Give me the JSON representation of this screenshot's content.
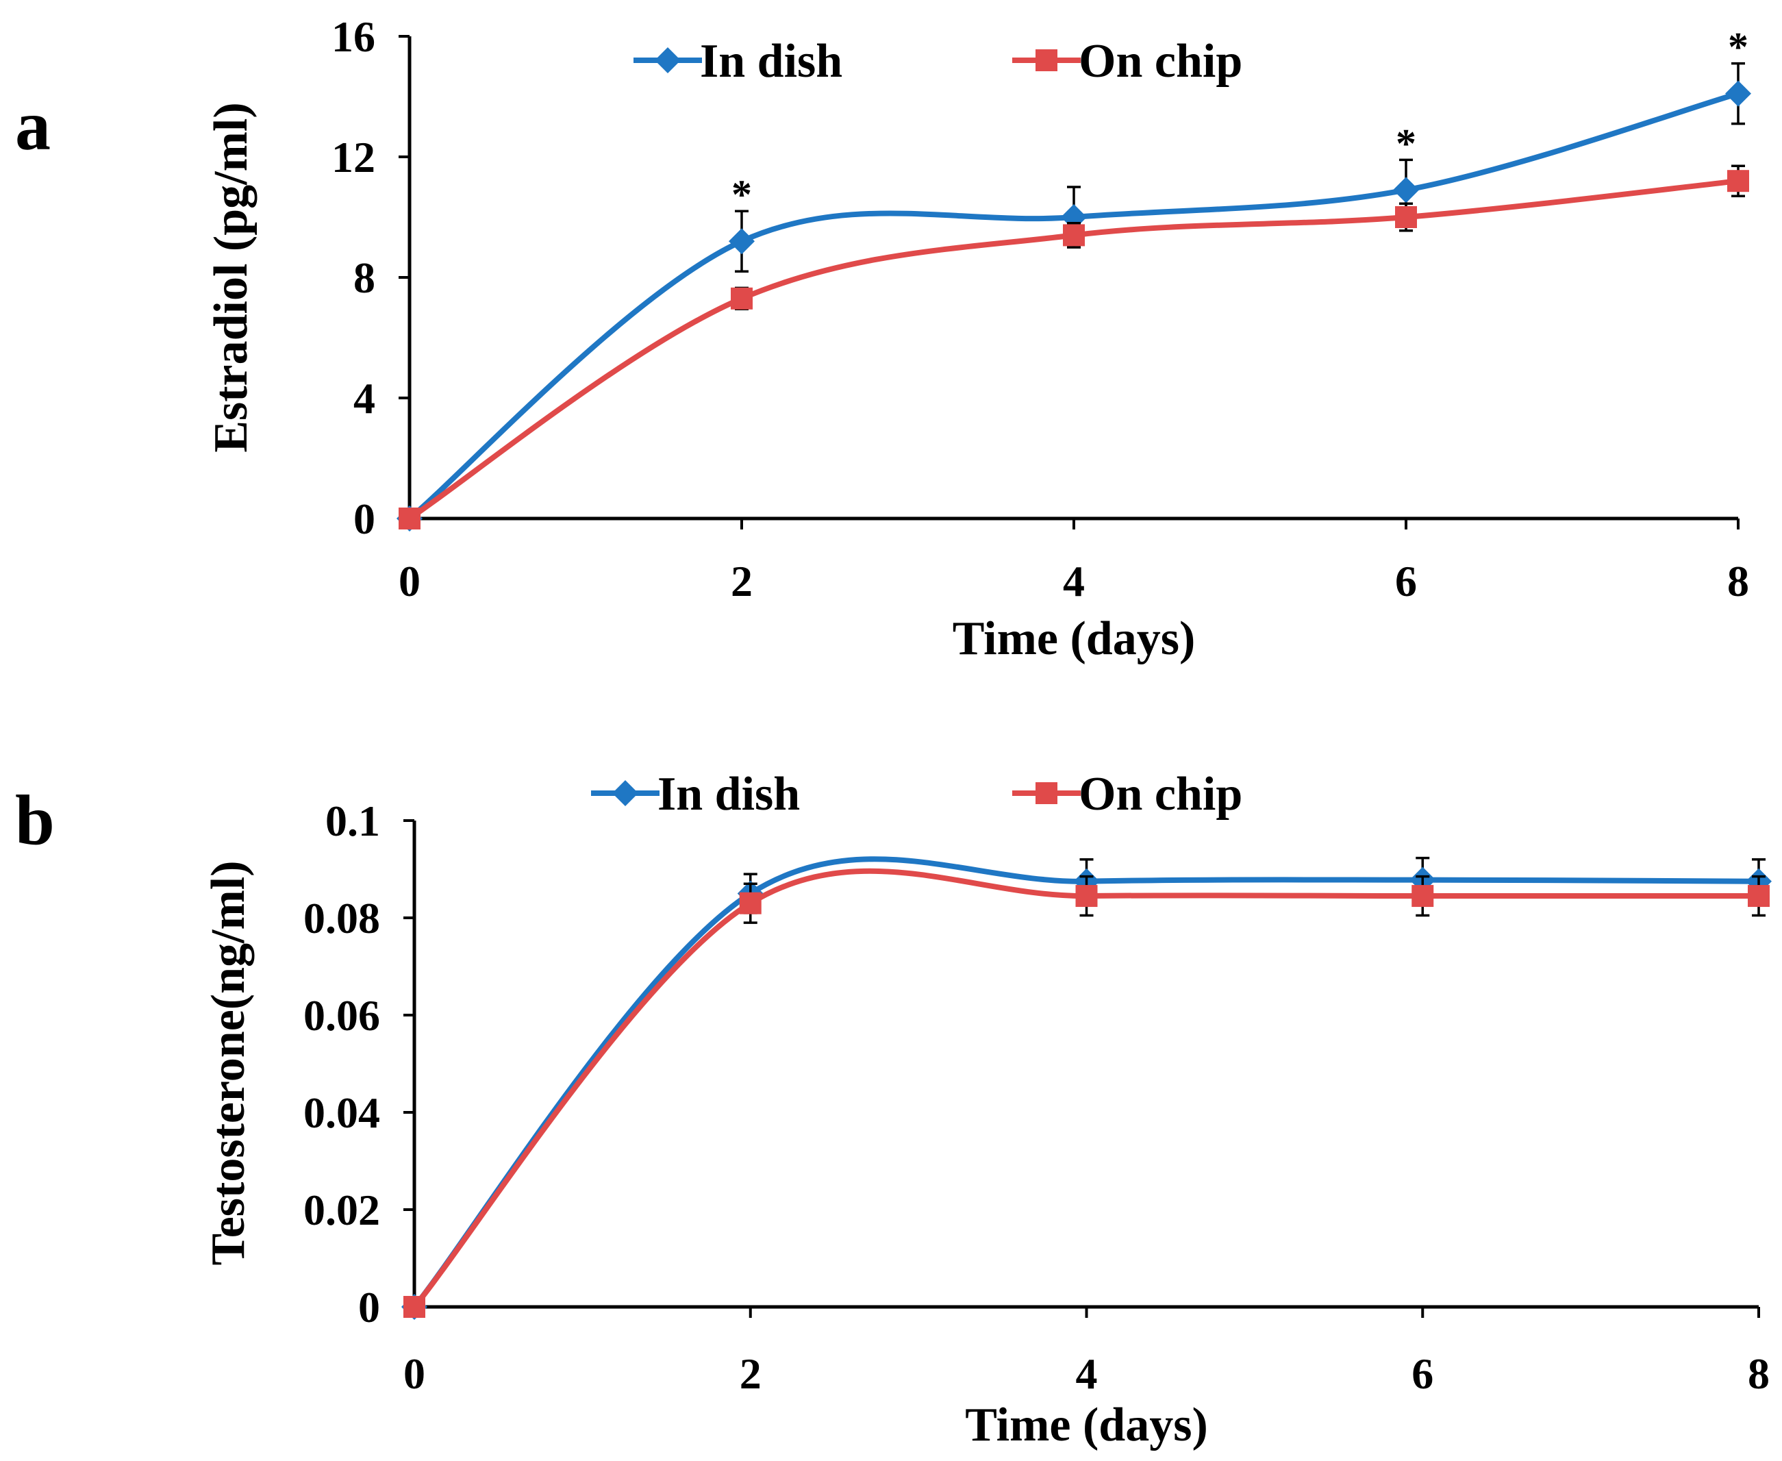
{
  "chart_data": [
    {
      "panel_label": "a",
      "type": "line",
      "xlabel": "Time (days)",
      "ylabel": "Estradiol (pg/ml)",
      "x_ticks": [
        "0",
        "2",
        "4",
        "6",
        "8"
      ],
      "y_ticks": [
        "0",
        "4",
        "8",
        "12",
        "16"
      ],
      "xlim": [
        0,
        8
      ],
      "ylim": [
        0,
        16
      ],
      "grid": false,
      "legend_position": "top",
      "x": [
        0,
        2,
        4,
        6,
        8
      ],
      "series": [
        {
          "name": "In dish",
          "color": "#1f77c4",
          "marker": "diamond",
          "values": [
            0,
            9.2,
            10.0,
            10.9,
            14.1
          ],
          "errors": [
            0,
            1.0,
            1.0,
            1.0,
            1.0
          ]
        },
        {
          "name": "On chip",
          "color": "#e04a4a",
          "marker": "square",
          "values": [
            0,
            7.3,
            9.4,
            10.0,
            11.2
          ],
          "errors": [
            0,
            0.35,
            0.4,
            0.45,
            0.5
          ]
        }
      ],
      "annotations": [
        {
          "text": "*",
          "x": 2,
          "y": 10.2
        },
        {
          "text": "*",
          "x": 6,
          "y": 11.9
        },
        {
          "text": "*",
          "x": 8,
          "y": 15.1
        }
      ]
    },
    {
      "panel_label": "b",
      "type": "line",
      "xlabel": "Time (days)",
      "ylabel": "Testosterone(ng/ml)",
      "x_ticks": [
        "0",
        "2",
        "4",
        "6",
        "8"
      ],
      "y_ticks": [
        "0",
        "0.02",
        "0.04",
        "0.06",
        "0.08",
        "0.1"
      ],
      "xlim": [
        0,
        8
      ],
      "ylim": [
        0,
        0.1
      ],
      "grid": false,
      "legend_position": "top",
      "x": [
        0,
        2,
        4,
        6,
        8
      ],
      "series": [
        {
          "name": "In dish",
          "color": "#1f77c4",
          "marker": "diamond",
          "values": [
            0,
            0.085,
            0.0875,
            0.0878,
            0.0875
          ],
          "errors": [
            0,
            0.004,
            0.0045,
            0.0045,
            0.0045
          ]
        },
        {
          "name": "On chip",
          "color": "#e04a4a",
          "marker": "square",
          "values": [
            0,
            0.083,
            0.0845,
            0.0845,
            0.0845
          ],
          "errors": [
            0,
            0.004,
            0.004,
            0.004,
            0.004
          ]
        }
      ],
      "annotations": []
    }
  ]
}
